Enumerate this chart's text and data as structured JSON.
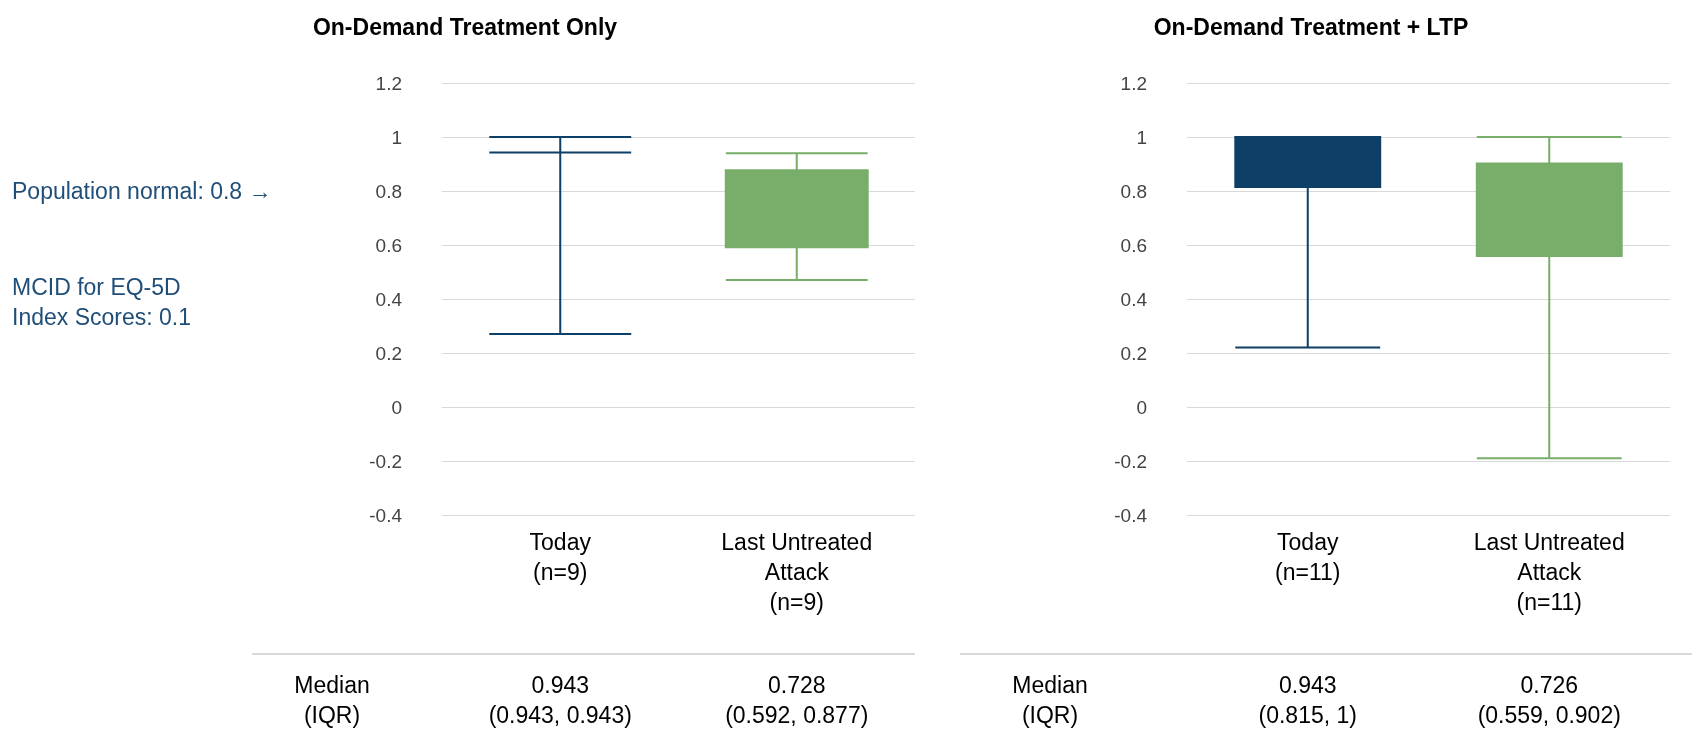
{
  "chart_data": [
    {
      "type": "box",
      "title": "On-Demand Treatment Only",
      "categories": [
        "Today\n(n=9)",
        "Last Untreated\nAttack\n(n=9)"
      ],
      "boxes": [
        {
          "low": 0.27,
          "q1": 0.943,
          "median": 0.943,
          "q3": 0.943,
          "high": 1
        },
        {
          "low": 0.47,
          "q1": 0.592,
          "median": 0.728,
          "q3": 0.877,
          "high": 0.94
        }
      ],
      "colors": [
        "#0e3f66",
        "#78ad6a"
      ],
      "ylim": [
        -0.4,
        1.2
      ],
      "yticks": [
        -0.4,
        -0.2,
        0,
        0.2,
        0.4,
        0.6,
        0.8,
        1,
        1.2
      ],
      "grid": "y",
      "value_labels": [
        "0.943\n(0.943, 0.943)",
        "0.728\n(0.592, 0.877)"
      ],
      "annotations": [
        "Population normal: 0.8 →",
        "MCID for EQ-5D\nIndex Scores: 0.1",
        "Median\n(IQR)"
      ]
    },
    {
      "type": "box",
      "title": "On-Demand Treatment + LTP",
      "categories": [
        "Today\n(n=11)",
        "Last Untreated\nAttack\n(n=11)"
      ],
      "boxes": [
        {
          "low": 0.22,
          "q1": 0.815,
          "median": 0.943,
          "q3": 1,
          "high": 1
        },
        {
          "low": -0.19,
          "q1": 0.559,
          "median": 0.726,
          "q3": 0.902,
          "high": 1
        }
      ],
      "colors": [
        "#0e3f66",
        "#78ad6a"
      ],
      "ylim": [
        -0.4,
        1.2
      ],
      "yticks": [
        -0.4,
        -0.2,
        0,
        0.2,
        0.4,
        0.6,
        0.8,
        1,
        1.2
      ],
      "grid": "y",
      "value_labels": [
        "0.943\n(0.815, 1)",
        "0.726\n(0.559, 0.902)"
      ],
      "annotations": [
        "Median\n(IQR)"
      ]
    }
  ]
}
